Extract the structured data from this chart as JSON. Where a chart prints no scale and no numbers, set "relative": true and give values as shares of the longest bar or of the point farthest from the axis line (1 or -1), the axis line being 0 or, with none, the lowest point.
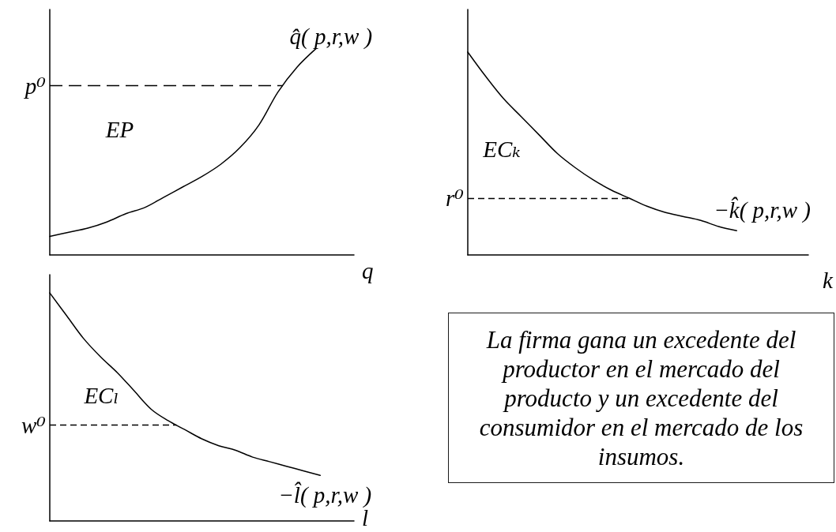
{
  "chart_data": [
    {
      "type": "line",
      "relative": true,
      "xlabel": "q",
      "categories": [
        null,
        null,
        null,
        null,
        null,
        null,
        null,
        null,
        null,
        null,
        null,
        null,
        null,
        null,
        null,
        null,
        null
      ],
      "series": [
        {
          "name": "q̂( p,r,w )",
          "color": "#000000",
          "values": [
            0.09,
            0.11,
            0.13,
            0.16,
            0.2,
            0.23,
            0.28,
            0.33,
            0.38,
            0.44,
            0.52,
            0.63,
            0.79,
            0.91,
            1,
            null,
            null
          ]
        }
      ],
      "ref_lines": [
        {
          "axis": "y",
          "value": 0.82,
          "label": "p⁰",
          "color": "#000000",
          "line_style": "dashed"
        }
      ],
      "annotations": [
        "EP"
      ]
    },
    {
      "type": "line",
      "relative": true,
      "xlabel": "k",
      "categories": [
        null,
        null,
        null,
        null,
        null,
        null,
        null,
        null,
        null,
        null,
        null,
        null,
        null,
        null,
        null,
        null,
        null,
        null,
        null,
        null
      ],
      "series": [
        {
          "name": "−k̂( p,r,w )",
          "color": "#000000",
          "values": [
            1,
            0.88,
            0.77,
            0.68,
            0.59,
            0.5,
            0.43,
            0.37,
            0.32,
            0.28,
            0.24,
            0.21,
            0.19,
            0.17,
            0.14,
            0.12,
            null,
            null,
            null,
            null
          ]
        }
      ],
      "ref_lines": [
        {
          "axis": "y",
          "value": 0.28,
          "label": "r⁰",
          "color": "#000000",
          "line_style": "dashed"
        }
      ],
      "annotations": [
        "ECₖ"
      ]
    },
    {
      "type": "line",
      "relative": true,
      "xlabel": "l",
      "categories": [
        null,
        null,
        null,
        null,
        null,
        null,
        null,
        null,
        null,
        null,
        null,
        null,
        null,
        null,
        null,
        null,
        null,
        null,
        null
      ],
      "series": [
        {
          "name": "−l̂( p,r,w )",
          "color": "#000000",
          "values": [
            1,
            0.9,
            0.8,
            0.72,
            0.65,
            0.57,
            0.49,
            0.44,
            0.4,
            0.36,
            0.33,
            0.31,
            0.28,
            0.26,
            0.24,
            0.22,
            0.2,
            null,
            null
          ]
        }
      ],
      "ref_lines": [
        {
          "axis": "y",
          "value": 0.42,
          "label": "w⁰",
          "color": "#000000",
          "line_style": "dashed"
        }
      ],
      "annotations": [
        "ECₗ"
      ]
    },
    {
      "type": "other",
      "annotations": [
        "La firma gana un excedente del productor en el mercado del producto y un excedente del consumidor en el mercado de los insumos."
      ]
    }
  ]
}
